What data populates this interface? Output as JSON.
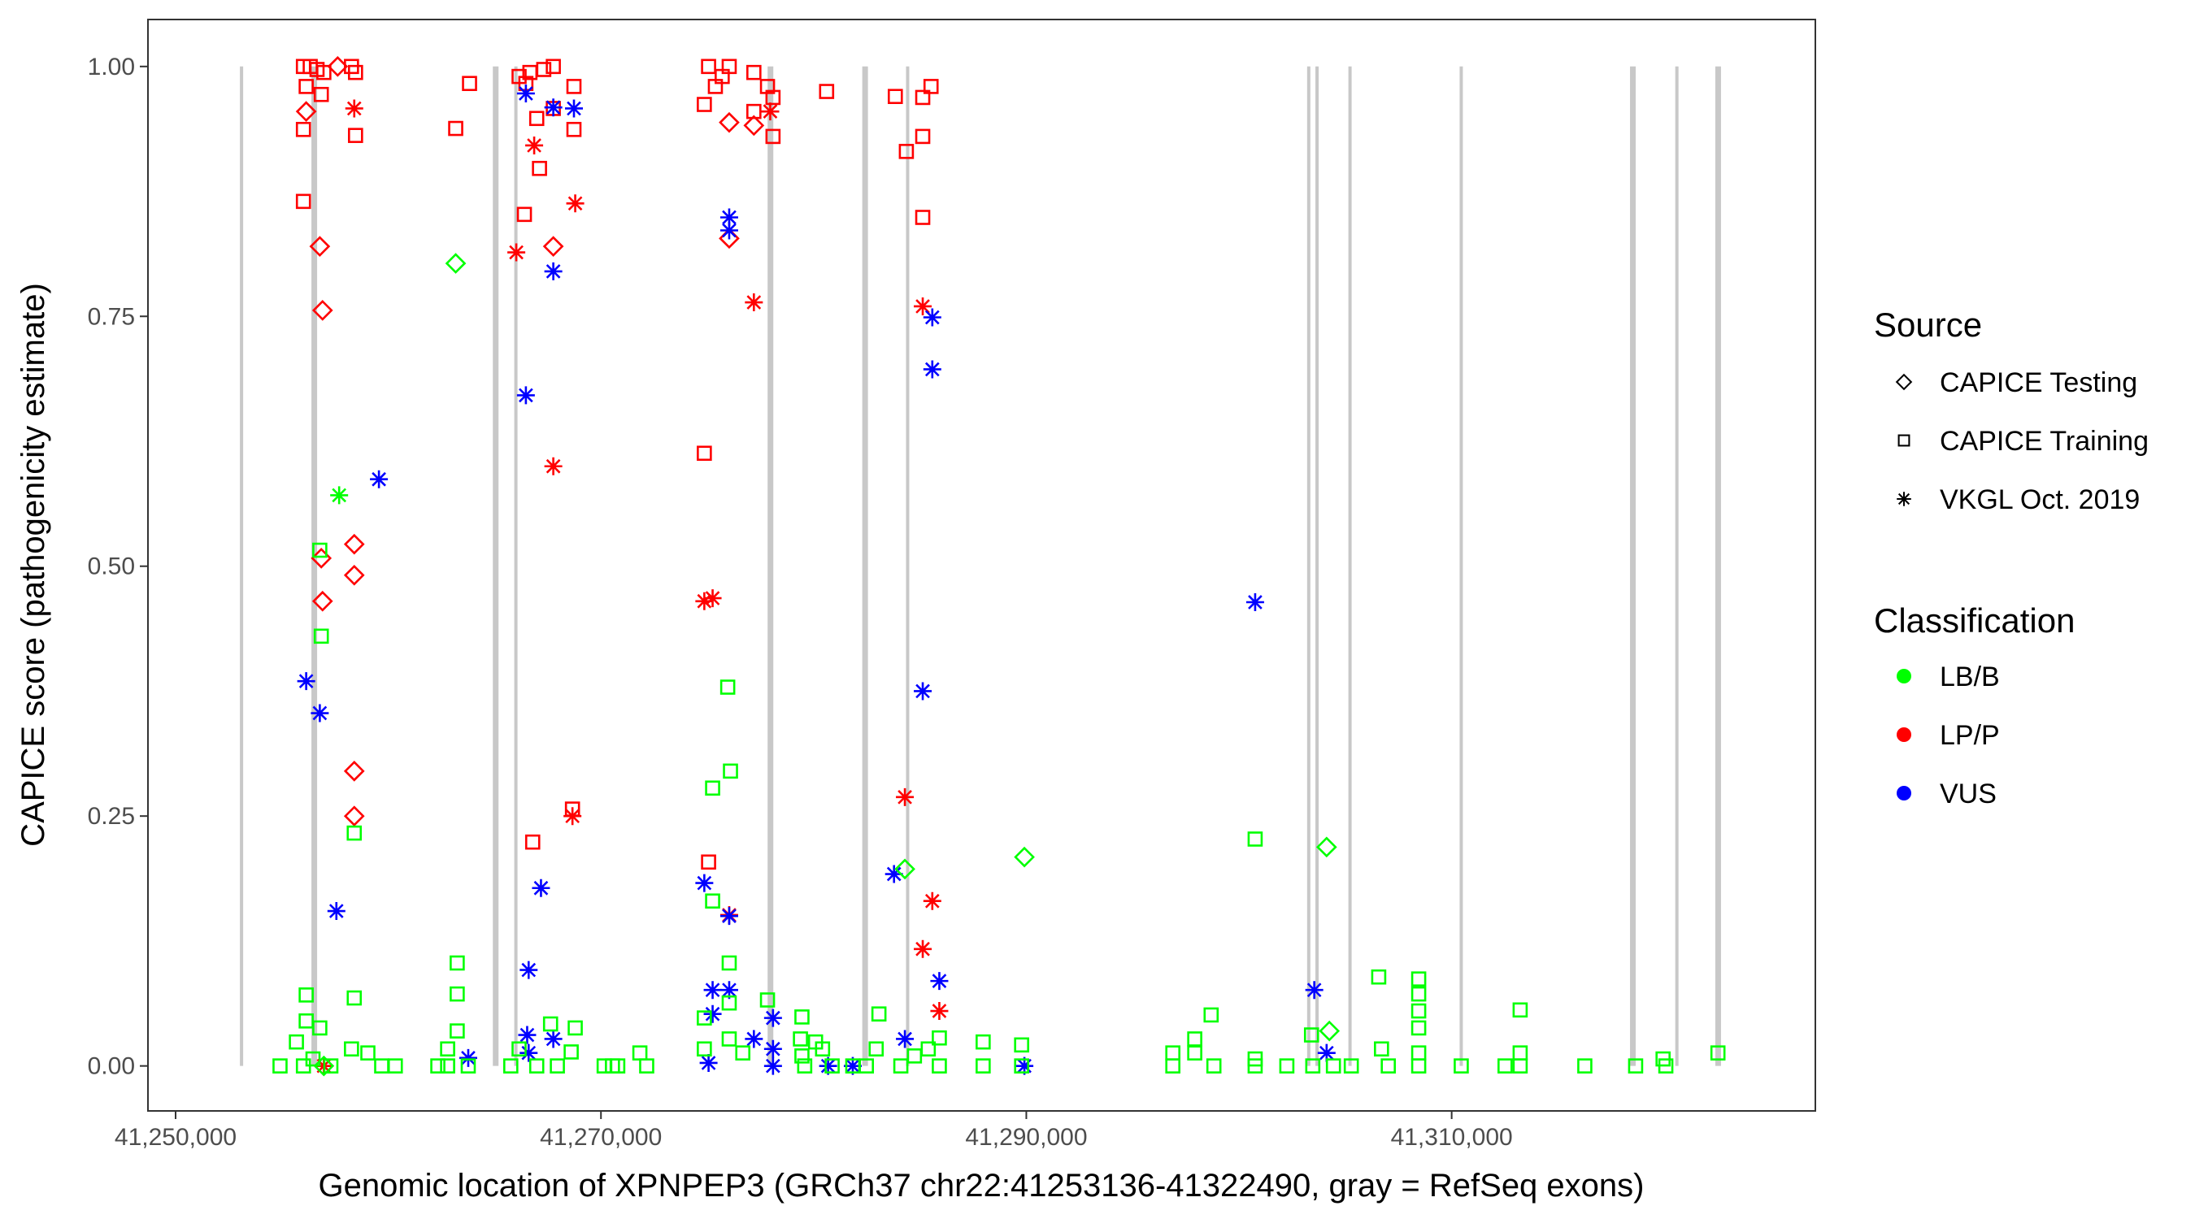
{
  "chart_data": {
    "type": "scatter",
    "xlabel": "Genomic location of XPNPEP3 (GRCh37 chr22:41253136-41322490, gray = RefSeq exons)",
    "ylabel": "CAPICE score (pathogenicity estimate)",
    "xlim": [
      41248700,
      41327100
    ],
    "ylim": [
      -0.045,
      1.047
    ],
    "x_ticks": [
      41250000,
      41270000,
      41290000,
      41310000
    ],
    "x_tick_labels": [
      "41,250,000",
      "41,270,000",
      "41,290,000",
      "41,310,000"
    ],
    "y_ticks": [
      0,
      0.25,
      0.5,
      0.75,
      1.0
    ],
    "y_tick_labels": [
      "0.00",
      "0.25",
      "0.50",
      "0.75",
      "1.00"
    ],
    "grid": false,
    "legend_placement": "right",
    "legend": {
      "source_title": "Source",
      "sources": [
        {
          "label": "CAPICE Testing",
          "shape": "diamond"
        },
        {
          "label": "CAPICE Training",
          "shape": "square"
        },
        {
          "label": "VKGL Oct. 2019",
          "shape": "asterisk"
        }
      ],
      "class_title": "Classification",
      "classes": [
        {
          "label": "LB/B",
          "color": "#00ff00"
        },
        {
          "label": "LP/P",
          "color": "#ff0000"
        },
        {
          "label": "VUS",
          "color": "#0000ff"
        }
      ]
    },
    "exon_color": "#c8c8c8",
    "exons": [
      {
        "pos": 41253100,
        "thick": false
      },
      {
        "pos": 41256520,
        "thick": true
      },
      {
        "pos": 41265050,
        "thick": true
      },
      {
        "pos": 41266000,
        "thick": false
      },
      {
        "pos": 41277970,
        "thick": true
      },
      {
        "pos": 41282420,
        "thick": true
      },
      {
        "pos": 41284420,
        "thick": false
      },
      {
        "pos": 41303280,
        "thick": false
      },
      {
        "pos": 41303670,
        "thick": false
      },
      {
        "pos": 41305220,
        "thick": false
      },
      {
        "pos": 41310450,
        "thick": false
      },
      {
        "pos": 41318520,
        "thick": true
      },
      {
        "pos": 41320590,
        "thick": false
      },
      {
        "pos": 41322530,
        "thick": true
      }
    ],
    "point_fields": [
      "position",
      "score",
      "source_index",
      "class_index"
    ],
    "points": [
      [
        41256010,
        1.0,
        1,
        1
      ],
      [
        41256330,
        1.0,
        1,
        1
      ],
      [
        41256650,
        0.997,
        1,
        1
      ],
      [
        41256970,
        0.994,
        1,
        1
      ],
      [
        41258270,
        1.0,
        1,
        1
      ],
      [
        41258460,
        0.994,
        1,
        1
      ],
      [
        41256140,
        0.98,
        1,
        1
      ],
      [
        41256850,
        0.972,
        1,
        1
      ],
      [
        41256010,
        0.937,
        1,
        1
      ],
      [
        41258460,
        0.931,
        1,
        1
      ],
      [
        41256010,
        0.865,
        1,
        1
      ],
      [
        41263170,
        0.938,
        1,
        1
      ],
      [
        41263820,
        0.983,
        1,
        1
      ],
      [
        41266150,
        0.99,
        1,
        1
      ],
      [
        41266660,
        0.994,
        1,
        1
      ],
      [
        41267310,
        0.997,
        1,
        1
      ],
      [
        41267760,
        1.0,
        1,
        1
      ],
      [
        41266470,
        0.983,
        1,
        1
      ],
      [
        41266980,
        0.948,
        1,
        1
      ],
      [
        41267110,
        0.898,
        1,
        1
      ],
      [
        41266400,
        0.852,
        1,
        1
      ],
      [
        41268730,
        0.98,
        1,
        1
      ],
      [
        41268730,
        0.937,
        1,
        1
      ],
      [
        41267760,
        0.958,
        1,
        1
      ],
      [
        41266790,
        0.224,
        1,
        1
      ],
      [
        41268660,
        0.257,
        1,
        1
      ],
      [
        41275060,
        1.0,
        1,
        1
      ],
      [
        41276030,
        1.0,
        1,
        1
      ],
      [
        41275700,
        0.99,
        1,
        1
      ],
      [
        41275380,
        0.98,
        1,
        1
      ],
      [
        41274860,
        0.962,
        1,
        1
      ],
      [
        41274860,
        0.613,
        1,
        1
      ],
      [
        41275060,
        0.204,
        1,
        1
      ],
      [
        41277190,
        0.994,
        1,
        1
      ],
      [
        41277830,
        0.98,
        1,
        1
      ],
      [
        41278090,
        0.969,
        1,
        1
      ],
      [
        41278090,
        0.93,
        1,
        1
      ],
      [
        41277190,
        0.955,
        1,
        1
      ],
      [
        41280610,
        0.975,
        1,
        1
      ],
      [
        41283840,
        0.97,
        1,
        1
      ],
      [
        41285130,
        0.969,
        1,
        1
      ],
      [
        41285520,
        0.98,
        1,
        1
      ],
      [
        41285130,
        0.93,
        1,
        1
      ],
      [
        41284360,
        0.915,
        1,
        1
      ],
      [
        41285130,
        0.849,
        1,
        1
      ],
      [
        41256140,
        0.955,
        0,
        1
      ],
      [
        41256780,
        0.82,
        0,
        1
      ],
      [
        41256910,
        0.756,
        0,
        1
      ],
      [
        41256850,
        0.508,
        0,
        1
      ],
      [
        41256910,
        0.465,
        0,
        1
      ],
      [
        41258400,
        0.522,
        0,
        1
      ],
      [
        41258400,
        0.491,
        0,
        1
      ],
      [
        41258400,
        0.295,
        0,
        1
      ],
      [
        41258400,
        0.25,
        0,
        1
      ],
      [
        41267760,
        0.82,
        0,
        1
      ],
      [
        41276030,
        0.944,
        0,
        1
      ],
      [
        41276030,
        0.828,
        0,
        1
      ],
      [
        41277190,
        0.941,
        0,
        1
      ],
      [
        41257620,
        1.0,
        0,
        1
      ],
      [
        41258400,
        0.958,
        2,
        1
      ],
      [
        41266020,
        0.814,
        2,
        1
      ],
      [
        41266860,
        0.921,
        2,
        1
      ],
      [
        41268790,
        0.863,
        2,
        1
      ],
      [
        41267760,
        0.6,
        2,
        1
      ],
      [
        41268660,
        0.25,
        2,
        1
      ],
      [
        41274860,
        0.465,
        2,
        1
      ],
      [
        41275250,
        0.468,
        2,
        1
      ],
      [
        41276030,
        0.151,
        2,
        1
      ],
      [
        41277190,
        0.764,
        2,
        1
      ],
      [
        41277960,
        0.955,
        2,
        1
      ],
      [
        41284290,
        0.269,
        2,
        1
      ],
      [
        41285130,
        0.76,
        2,
        1
      ],
      [
        41285580,
        0.165,
        2,
        1
      ],
      [
        41285130,
        0.117,
        2,
        1
      ],
      [
        41285910,
        0.055,
        2,
        1
      ],
      [
        41256970,
        0.0,
        2,
        1
      ],
      [
        41256140,
        0.385,
        2,
        2
      ],
      [
        41256780,
        0.353,
        2,
        2
      ],
      [
        41257560,
        0.155,
        2,
        2
      ],
      [
        41259560,
        0.587,
        2,
        2
      ],
      [
        41263760,
        0.008,
        2,
        2
      ],
      [
        41266470,
        0.973,
        2,
        2
      ],
      [
        41266470,
        0.671,
        2,
        2
      ],
      [
        41267760,
        0.795,
        2,
        2
      ],
      [
        41268730,
        0.958,
        2,
        2
      ],
      [
        41267760,
        0.959,
        2,
        2
      ],
      [
        41267180,
        0.178,
        2,
        2
      ],
      [
        41266600,
        0.096,
        2,
        2
      ],
      [
        41266530,
        0.031,
        2,
        2
      ],
      [
        41266600,
        0.013,
        2,
        2
      ],
      [
        41267760,
        0.027,
        2,
        2
      ],
      [
        41276030,
        0.849,
        2,
        2
      ],
      [
        41276030,
        0.836,
        2,
        2
      ],
      [
        41274860,
        0.183,
        2,
        2
      ],
      [
        41276030,
        0.15,
        2,
        2
      ],
      [
        41275250,
        0.076,
        2,
        2
      ],
      [
        41276030,
        0.076,
        2,
        2
      ],
      [
        41275250,
        0.052,
        2,
        2
      ],
      [
        41275060,
        0.003,
        2,
        2
      ],
      [
        41277190,
        0.027,
        2,
        2
      ],
      [
        41278090,
        0.048,
        2,
        2
      ],
      [
        41278090,
        0.017,
        2,
        2
      ],
      [
        41278090,
        0.0,
        2,
        2
      ],
      [
        41280680,
        0.0,
        2,
        2
      ],
      [
        41281840,
        0.0,
        2,
        2
      ],
      [
        41283780,
        0.192,
        2,
        2
      ],
      [
        41285130,
        0.375,
        2,
        2
      ],
      [
        41285580,
        0.749,
        2,
        2
      ],
      [
        41285580,
        0.697,
        2,
        2
      ],
      [
        41285910,
        0.085,
        2,
        2
      ],
      [
        41284290,
        0.027,
        2,
        2
      ],
      [
        41289910,
        0.0,
        2,
        2
      ],
      [
        41300760,
        0.464,
        2,
        2
      ],
      [
        41303540,
        0.076,
        2,
        2
      ],
      [
        41304120,
        0.013,
        2,
        2
      ],
      [
        41263170,
        0.803,
        0,
        0
      ],
      [
        41284290,
        0.197,
        0,
        0
      ],
      [
        41289910,
        0.209,
        0,
        0
      ],
      [
        41304120,
        0.219,
        0,
        0
      ],
      [
        41304250,
        0.035,
        0,
        0
      ],
      [
        41256970,
        0.0,
        0,
        0
      ],
      [
        41257690,
        0.571,
        2,
        0
      ],
      [
        41256780,
        0.516,
        1,
        0
      ],
      [
        41256850,
        0.43,
        1,
        0
      ],
      [
        41258400,
        0.233,
        1,
        0
      ],
      [
        41258400,
        0.068,
        1,
        0
      ],
      [
        41256140,
        0.071,
        1,
        0
      ],
      [
        41256140,
        0.045,
        1,
        0
      ],
      [
        41256780,
        0.038,
        1,
        0
      ],
      [
        41255680,
        0.024,
        1,
        0
      ],
      [
        41254910,
        0.0,
        1,
        0
      ],
      [
        41256010,
        0.0,
        1,
        0
      ],
      [
        41256460,
        0.007,
        1,
        0
      ],
      [
        41257300,
        0.0,
        1,
        0
      ],
      [
        41258270,
        0.017,
        1,
        0
      ],
      [
        41259040,
        0.013,
        1,
        0
      ],
      [
        41259690,
        0.0,
        1,
        0
      ],
      [
        41260330,
        0.0,
        1,
        0
      ],
      [
        41263240,
        0.103,
        1,
        0
      ],
      [
        41263240,
        0.072,
        1,
        0
      ],
      [
        41263240,
        0.035,
        1,
        0
      ],
      [
        41262790,
        0.017,
        1,
        0
      ],
      [
        41262330,
        0.0,
        1,
        0
      ],
      [
        41262790,
        0.0,
        1,
        0
      ],
      [
        41263760,
        0.0,
        1,
        0
      ],
      [
        41266150,
        0.017,
        1,
        0
      ],
      [
        41267630,
        0.042,
        1,
        0
      ],
      [
        41268790,
        0.038,
        1,
        0
      ],
      [
        41268600,
        0.014,
        1,
        0
      ],
      [
        41267950,
        0.0,
        1,
        0
      ],
      [
        41266980,
        0.0,
        1,
        0
      ],
      [
        41265760,
        0.0,
        1,
        0
      ],
      [
        41270150,
        0.0,
        1,
        0
      ],
      [
        41270540,
        0.0,
        1,
        0
      ],
      [
        41270790,
        0.0,
        1,
        0
      ],
      [
        41271830,
        0.013,
        1,
        0
      ],
      [
        41272150,
        0.0,
        1,
        0
      ],
      [
        41275960,
        0.379,
        1,
        0
      ],
      [
        41276090,
        0.295,
        1,
        0
      ],
      [
        41275250,
        0.278,
        1,
        0
      ],
      [
        41275250,
        0.165,
        1,
        0
      ],
      [
        41276030,
        0.103,
        1,
        0
      ],
      [
        41276030,
        0.063,
        1,
        0
      ],
      [
        41274860,
        0.048,
        1,
        0
      ],
      [
        41274860,
        0.017,
        1,
        0
      ],
      [
        41276030,
        0.027,
        1,
        0
      ],
      [
        41276670,
        0.013,
        1,
        0
      ],
      [
        41277830,
        0.066,
        1,
        0
      ],
      [
        41279450,
        0.049,
        1,
        0
      ],
      [
        41279380,
        0.027,
        1,
        0
      ],
      [
        41280090,
        0.024,
        1,
        0
      ],
      [
        41279450,
        0.01,
        1,
        0
      ],
      [
        41280420,
        0.017,
        1,
        0
      ],
      [
        41280870,
        0.0,
        1,
        0
      ],
      [
        41279580,
        0.0,
        1,
        0
      ],
      [
        41281840,
        0.0,
        1,
        0
      ],
      [
        41283070,
        0.052,
        1,
        0
      ],
      [
        41282940,
        0.017,
        1,
        0
      ],
      [
        41282480,
        0.0,
        1,
        0
      ],
      [
        41284100,
        0.0,
        1,
        0
      ],
      [
        41284740,
        0.01,
        1,
        0
      ],
      [
        41285390,
        0.017,
        1,
        0
      ],
      [
        41285910,
        0.028,
        1,
        0
      ],
      [
        41285910,
        0.0,
        1,
        0
      ],
      [
        41287970,
        0.024,
        1,
        0
      ],
      [
        41287970,
        0.0,
        1,
        0
      ],
      [
        41289780,
        0.021,
        1,
        0
      ],
      [
        41289780,
        0.0,
        1,
        0
      ],
      [
        41296890,
        0.013,
        1,
        0
      ],
      [
        41296890,
        0.0,
        1,
        0
      ],
      [
        41297920,
        0.027,
        1,
        0
      ],
      [
        41297920,
        0.013,
        1,
        0
      ],
      [
        41298690,
        0.051,
        1,
        0
      ],
      [
        41298820,
        0.0,
        1,
        0
      ],
      [
        41300760,
        0.227,
        1,
        0
      ],
      [
        41300760,
        0.007,
        1,
        0
      ],
      [
        41300760,
        0.0,
        1,
        0
      ],
      [
        41302250,
        0.0,
        1,
        0
      ],
      [
        41303410,
        0.031,
        1,
        0
      ],
      [
        41303470,
        0.0,
        1,
        0
      ],
      [
        41304440,
        0.0,
        1,
        0
      ],
      [
        41305280,
        0.0,
        1,
        0
      ],
      [
        41306570,
        0.089,
        1,
        0
      ],
      [
        41306700,
        0.017,
        1,
        0
      ],
      [
        41307020,
        0.0,
        1,
        0
      ],
      [
        41308450,
        0.087,
        1,
        0
      ],
      [
        41308450,
        0.072,
        1,
        0
      ],
      [
        41308450,
        0.055,
        1,
        0
      ],
      [
        41308450,
        0.038,
        1,
        0
      ],
      [
        41308450,
        0.013,
        1,
        0
      ],
      [
        41308450,
        0.0,
        1,
        0
      ],
      [
        41310450,
        0.0,
        1,
        0
      ],
      [
        41312510,
        0.0,
        1,
        0
      ],
      [
        41313220,
        0.056,
        1,
        0
      ],
      [
        41313220,
        0.013,
        1,
        0
      ],
      [
        41313220,
        0.0,
        1,
        0
      ],
      [
        41316260,
        0.0,
        1,
        0
      ],
      [
        41318650,
        0.0,
        1,
        0
      ],
      [
        41319940,
        0.007,
        1,
        0
      ],
      [
        41320070,
        0.0,
        1,
        0
      ],
      [
        41322520,
        0.013,
        1,
        0
      ]
    ]
  }
}
